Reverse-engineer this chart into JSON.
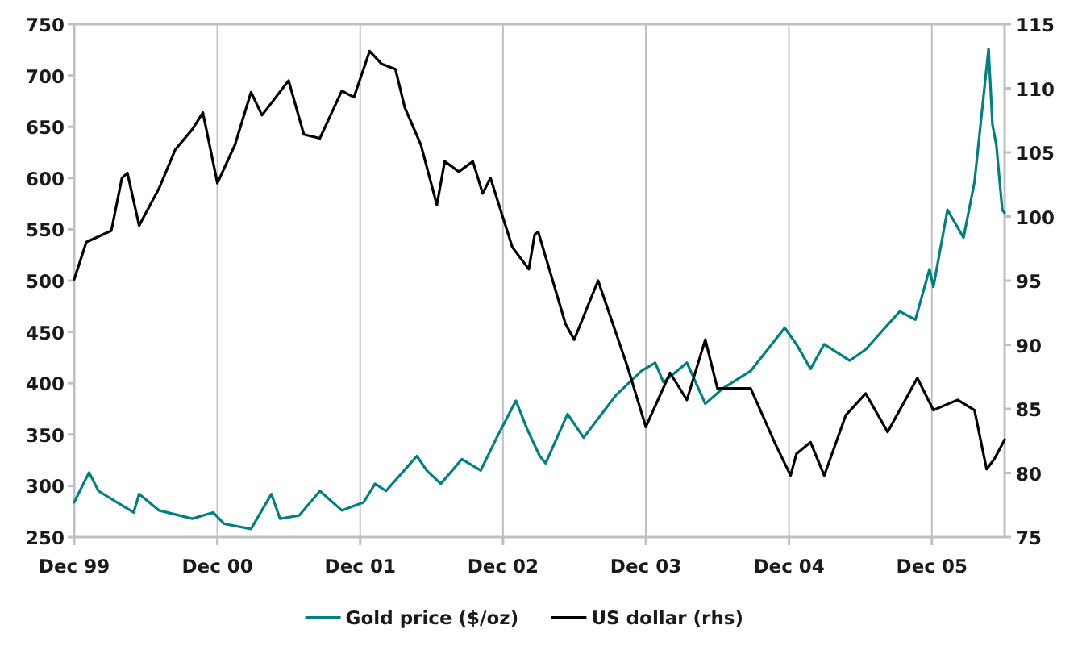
{
  "chart_data": {
    "type": "line",
    "xlabel": null,
    "xlim": [
      "1999-12-01",
      "2006-06-05"
    ],
    "xticks": [
      {
        "value": "1999-12-01",
        "label": "Dec 99"
      },
      {
        "value": "2000-12-01",
        "label": "Dec 00"
      },
      {
        "value": "2001-12-01",
        "label": "Dec 01"
      },
      {
        "value": "2002-12-01",
        "label": "Dec 02"
      },
      {
        "value": "2003-12-01",
        "label": "Dec 03"
      },
      {
        "value": "2004-12-01",
        "label": "Dec 04"
      },
      {
        "value": "2005-12-01",
        "label": "Dec 05"
      }
    ],
    "ylim": [
      250,
      750
    ],
    "yticks": [
      250,
      300,
      350,
      400,
      450,
      500,
      550,
      600,
      650,
      700,
      750
    ],
    "y2lim": [
      75,
      115
    ],
    "y2ticks": [
      75,
      80,
      85,
      90,
      95,
      100,
      105,
      110,
      115
    ],
    "grid": "x",
    "legend": "bottom",
    "line_style": "solid",
    "marker": "none",
    "series": [
      {
        "name": "Gold price ($/oz)",
        "color": "#008080",
        "x": [
          "1999-12-01",
          "2000-01-08",
          "2000-02-01",
          "2000-04-01",
          "2000-05-01",
          "2000-05-15",
          "2000-07-05",
          "2000-09-28",
          "2000-11-20",
          "2000-12-18",
          "2001-02-25",
          "2001-04-18",
          "2001-05-10",
          "2001-06-28",
          "2001-08-20",
          "2001-10-15",
          "2001-12-10",
          "2002-01-08",
          "2002-02-05",
          "2002-04-25",
          "2002-05-20",
          "2002-06-25",
          "2002-08-18",
          "2002-10-05",
          "2002-11-15",
          "2003-01-03",
          "2003-02-01",
          "2003-03-05",
          "2003-03-20",
          "2003-05-15",
          "2003-06-25",
          "2003-09-15",
          "2003-11-20",
          "2003-12-25",
          "2004-01-15",
          "2004-03-15",
          "2004-05-01",
          "2004-06-15",
          "2004-08-25",
          "2004-11-20",
          "2004-12-20",
          "2005-01-25",
          "2005-03-01",
          "2005-05-05",
          "2005-06-15",
          "2005-09-10",
          "2005-10-20",
          "2005-11-25",
          "2005-12-05",
          "2006-01-10",
          "2006-02-20",
          "2006-03-20",
          "2006-04-25",
          "2006-05-05",
          "2006-05-15",
          "2006-05-30",
          "2006-06-05"
        ],
        "values": [
          284,
          313,
          295,
          281,
          274,
          292,
          276,
          268,
          274,
          263,
          258,
          292,
          268,
          271,
          295,
          276,
          284,
          302,
          295,
          329,
          315,
          302,
          326,
          315,
          347,
          383,
          355,
          329,
          322,
          370,
          347,
          388,
          412,
          420,
          401,
          420,
          380,
          395,
          412,
          454,
          438,
          414,
          438,
          422,
          433,
          470,
          462,
          511,
          494,
          569,
          542,
          596,
          726,
          652,
          632,
          569,
          566
        ]
      },
      {
        "name": "US dollar (rhs)",
        "color": "#000000",
        "axis": "y2",
        "x": [
          "1999-12-01",
          "2000-01-01",
          "2000-03-05",
          "2000-04-01",
          "2000-04-15",
          "2000-05-15",
          "2000-07-05",
          "2000-08-15",
          "2000-09-28",
          "2000-10-25",
          "2000-12-01",
          "2001-01-15",
          "2001-02-25",
          "2001-03-25",
          "2001-06-01",
          "2001-07-10",
          "2001-08-20",
          "2001-10-15",
          "2001-11-15",
          "2001-12-25",
          "2002-01-25",
          "2002-03-01",
          "2002-03-25",
          "2002-05-05",
          "2002-06-15",
          "2002-07-05",
          "2002-08-10",
          "2002-09-15",
          "2002-10-10",
          "2002-10-30",
          "2002-12-25",
          "2003-02-05",
          "2003-02-20",
          "2003-03-01",
          "2003-05-10",
          "2003-06-01",
          "2003-08-01",
          "2003-10-15",
          "2003-12-01",
          "2004-02-01",
          "2004-03-15",
          "2004-05-01",
          "2004-06-01",
          "2004-08-25",
          "2004-10-25",
          "2004-12-05",
          "2004-12-20",
          "2005-01-25",
          "2005-03-01",
          "2005-04-25",
          "2005-06-15",
          "2005-08-10",
          "2005-10-25",
          "2005-12-05",
          "2006-02-05",
          "2006-03-20",
          "2006-04-20",
          "2006-05-10",
          "2006-06-05"
        ],
        "values": [
          95.1,
          98.0,
          98.9,
          103.0,
          103.4,
          99.3,
          102.2,
          105.2,
          106.8,
          108.1,
          102.6,
          105.6,
          109.7,
          107.9,
          110.6,
          106.4,
          106.1,
          109.8,
          109.3,
          112.9,
          111.9,
          111.5,
          108.5,
          105.6,
          100.9,
          104.3,
          103.5,
          104.3,
          101.8,
          103.0,
          97.6,
          95.9,
          98.6,
          98.8,
          91.6,
          90.4,
          95.0,
          88.3,
          83.6,
          87.8,
          85.7,
          90.4,
          86.6,
          86.6,
          82.4,
          79.8,
          81.5,
          82.4,
          79.8,
          84.5,
          86.2,
          83.2,
          87.4,
          84.9,
          85.7,
          84.9,
          80.3,
          81.1,
          82.6
        ]
      }
    ]
  }
}
